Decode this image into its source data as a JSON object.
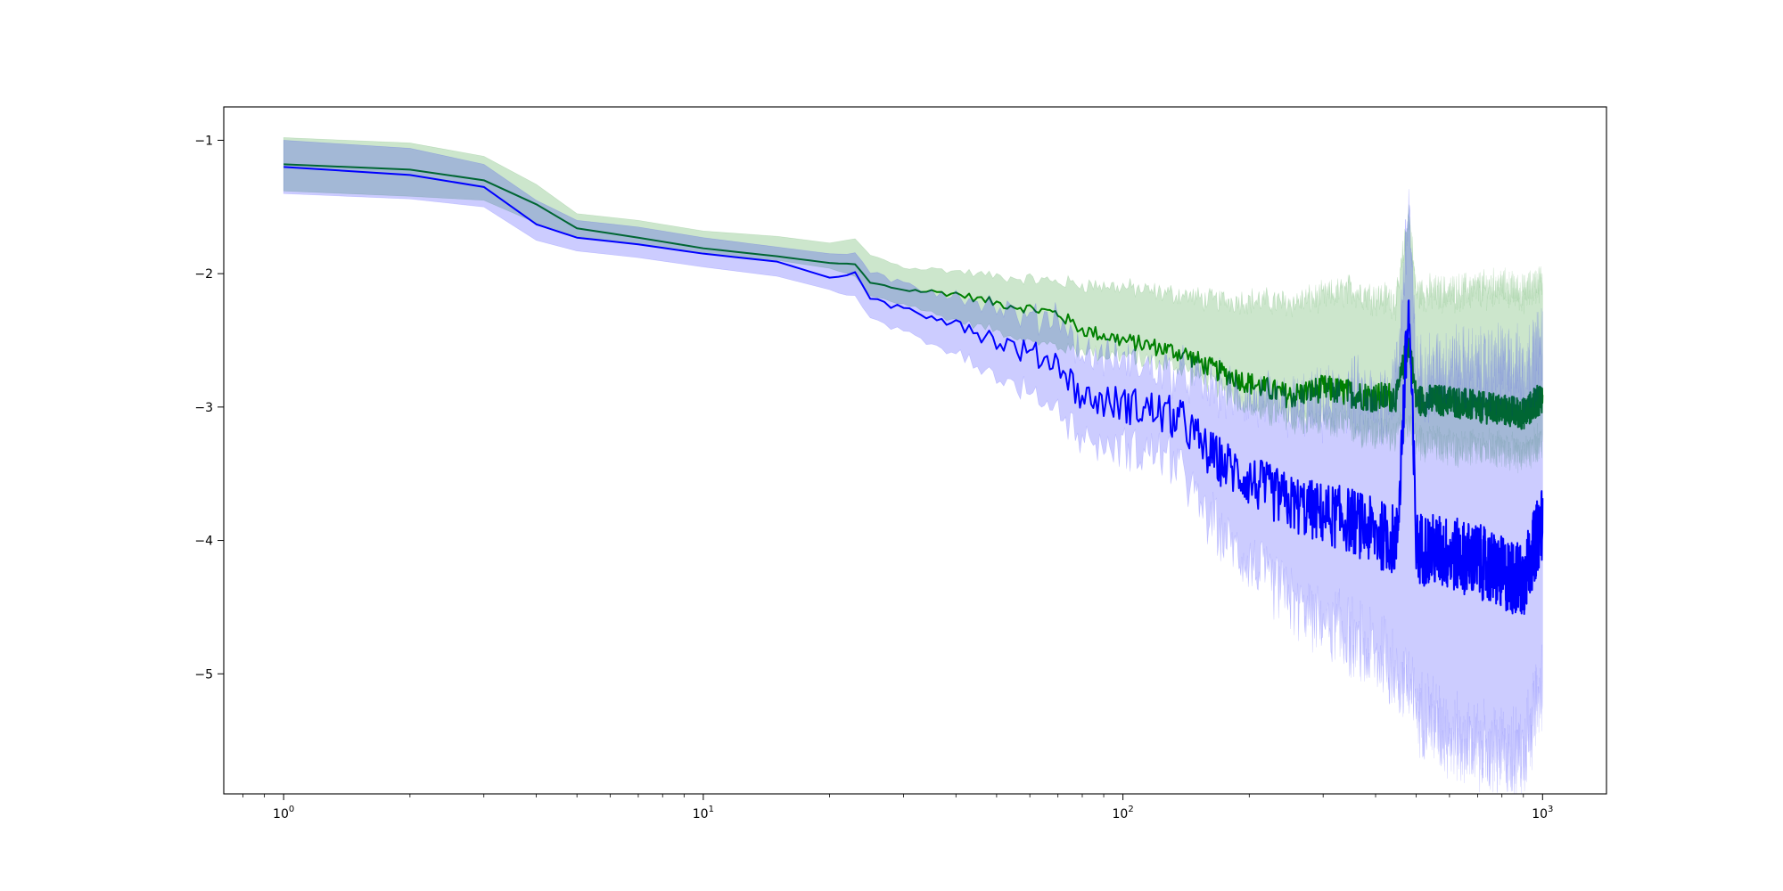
{
  "chart_data": {
    "type": "line",
    "title": "",
    "xlabel": "",
    "ylabel": "",
    "x_scale": "log",
    "xlim": [
      0.72,
      1420
    ],
    "ylim": [
      -5.9,
      -0.75
    ],
    "grid": false,
    "legend": "none",
    "x_ticks": [
      {
        "value": 1,
        "base": "10",
        "exp": "0"
      },
      {
        "value": 10,
        "base": "10",
        "exp": "1"
      },
      {
        "value": 100,
        "base": "10",
        "exp": "2"
      },
      {
        "value": 1000,
        "base": "10",
        "exp": "3"
      }
    ],
    "y_ticks": [
      {
        "value": -1,
        "label": "−1"
      },
      {
        "value": -2,
        "label": "−2"
      },
      {
        "value": -3,
        "label": "−3"
      },
      {
        "value": -4,
        "label": "−4"
      },
      {
        "value": -5,
        "label": "−5"
      }
    ],
    "series": [
      {
        "color": "#008000",
        "band_color": "#008000",
        "band_opacity": 0.2,
        "x": [
          1,
          2,
          3,
          4,
          5,
          7,
          10,
          15,
          20,
          23,
          25,
          30,
          40,
          50,
          60,
          70,
          80,
          100,
          120,
          140,
          160,
          200,
          250,
          300,
          350,
          400,
          450,
          480,
          500,
          600,
          700,
          800,
          900,
          1000
        ],
        "mean": [
          -1.18,
          -1.22,
          -1.3,
          -1.48,
          -1.66,
          -1.73,
          -1.81,
          -1.87,
          -1.92,
          -1.93,
          -2.07,
          -2.12,
          -2.15,
          -2.22,
          -2.26,
          -2.3,
          -2.42,
          -2.5,
          -2.55,
          -2.6,
          -2.7,
          -2.82,
          -2.92,
          -2.86,
          -2.9,
          -2.93,
          -2.92,
          -2.5,
          -2.95,
          -2.95,
          -3.0,
          -3.02,
          -3.05,
          -2.92
        ],
        "upper": [
          -0.98,
          -1.02,
          -1.12,
          -1.33,
          -1.55,
          -1.6,
          -1.68,
          -1.72,
          -1.77,
          -1.74,
          -1.86,
          -1.95,
          -1.98,
          -2.02,
          -2.04,
          -2.06,
          -2.08,
          -2.1,
          -2.14,
          -2.16,
          -2.2,
          -2.2,
          -2.22,
          -2.18,
          -2.12,
          -2.18,
          -2.2,
          -1.55,
          -2.15,
          -2.15,
          -2.12,
          -2.1,
          -2.15,
          -2.05
        ],
        "lower": [
          -1.38,
          -1.42,
          -1.45,
          -1.62,
          -1.72,
          -1.78,
          -1.85,
          -1.9,
          -1.96,
          -2.02,
          -2.17,
          -2.23,
          -2.35,
          -2.42,
          -2.5,
          -2.55,
          -2.58,
          -2.62,
          -2.65,
          -2.72,
          -2.8,
          -3.0,
          -3.1,
          -3.12,
          -3.15,
          -3.2,
          -3.2,
          -3.1,
          -3.25,
          -3.3,
          -3.32,
          -3.32,
          -3.35,
          -3.25
        ]
      },
      {
        "color": "#0000ff",
        "band_color": "#0000ff",
        "band_opacity": 0.2,
        "x": [
          1,
          2,
          3,
          4,
          5,
          7,
          10,
          15,
          20,
          23,
          25,
          30,
          40,
          50,
          60,
          70,
          80,
          100,
          120,
          140,
          160,
          200,
          250,
          300,
          350,
          400,
          450,
          480,
          500,
          600,
          700,
          800,
          900,
          1000
        ],
        "mean": [
          -1.2,
          -1.26,
          -1.35,
          -1.63,
          -1.73,
          -1.78,
          -1.85,
          -1.91,
          -2.03,
          -2.0,
          -2.2,
          -2.26,
          -2.35,
          -2.5,
          -2.6,
          -2.66,
          -2.93,
          -2.98,
          -3.03,
          -3.12,
          -3.35,
          -3.55,
          -3.72,
          -3.8,
          -3.85,
          -3.95,
          -4.0,
          -2.2,
          -4.05,
          -4.1,
          -4.15,
          -4.25,
          -4.3,
          -3.85
        ],
        "upper": [
          -1.0,
          -1.06,
          -1.18,
          -1.45,
          -1.6,
          -1.65,
          -1.73,
          -1.8,
          -1.85,
          -1.85,
          -2.0,
          -2.08,
          -2.15,
          -2.25,
          -2.35,
          -2.3,
          -2.6,
          -2.65,
          -2.72,
          -2.75,
          -2.85,
          -2.95,
          -3.0,
          -3.0,
          -2.9,
          -3.0,
          -2.8,
          -1.45,
          -2.8,
          -2.7,
          -2.75,
          -2.7,
          -2.75,
          -2.55
        ],
        "lower": [
          -1.4,
          -1.44,
          -1.5,
          -1.75,
          -1.83,
          -1.88,
          -1.95,
          -2.02,
          -2.12,
          -2.18,
          -2.35,
          -2.42,
          -2.58,
          -2.75,
          -2.9,
          -3.0,
          -3.25,
          -3.3,
          -3.35,
          -3.5,
          -3.85,
          -4.15,
          -4.45,
          -4.6,
          -4.75,
          -4.85,
          -5.0,
          -5.1,
          -5.25,
          -5.45,
          -5.55,
          -5.6,
          -5.58,
          -5.1
        ]
      }
    ]
  }
}
